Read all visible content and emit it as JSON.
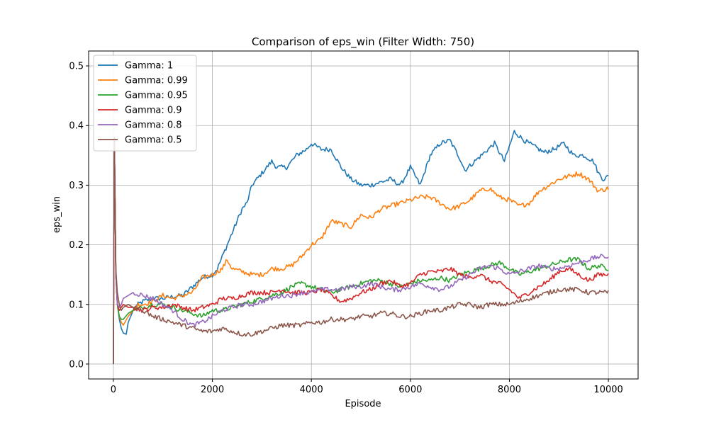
{
  "chart_data": {
    "type": "line",
    "title": "Comparison of eps_win (Filter Width: 750)",
    "xlabel": "Episode",
    "ylabel": "eps_win",
    "xlim": [
      -500,
      10600
    ],
    "ylim": [
      -0.025,
      0.525
    ],
    "xticks": [
      0,
      2000,
      4000,
      6000,
      8000,
      10000
    ],
    "yticks": [
      0.0,
      0.1,
      0.2,
      0.3,
      0.4,
      0.5
    ],
    "xtick_labels": [
      "0",
      "2000",
      "4000",
      "6000",
      "8000",
      "10000"
    ],
    "ytick_labels": [
      "0.0",
      "0.1",
      "0.2",
      "0.3",
      "0.4",
      "0.5"
    ],
    "grid": true,
    "legend": "top-left",
    "series": [
      {
        "name": "Gamma: 1",
        "color": "#1f77b4",
        "x": [
          0,
          20,
          50,
          80,
          120,
          160,
          200,
          260,
          300,
          400,
          500,
          600,
          800,
          1000,
          1200,
          1400,
          1600,
          1800,
          2000,
          2100,
          2300,
          2500,
          2600,
          2700,
          2800,
          3000,
          3200,
          3300,
          3500,
          3700,
          3900,
          4000,
          4200,
          4400,
          4600,
          4800,
          5000,
          5200,
          5400,
          5600,
          5800,
          6000,
          6200,
          6400,
          6600,
          6800,
          7000,
          7100,
          7300,
          7500,
          7700,
          7900,
          8100,
          8300,
          8500,
          8700,
          8900,
          9100,
          9300,
          9500,
          9700,
          9800,
          9900,
          10000
        ],
        "values": [
          0.0,
          0.38,
          0.15,
          0.1,
          0.075,
          0.06,
          0.052,
          0.05,
          0.07,
          0.09,
          0.1,
          0.105,
          0.11,
          0.11,
          0.113,
          0.115,
          0.13,
          0.145,
          0.15,
          0.16,
          0.2,
          0.24,
          0.26,
          0.27,
          0.3,
          0.32,
          0.34,
          0.33,
          0.33,
          0.35,
          0.36,
          0.37,
          0.36,
          0.36,
          0.33,
          0.31,
          0.3,
          0.3,
          0.305,
          0.31,
          0.3,
          0.33,
          0.3,
          0.35,
          0.37,
          0.375,
          0.345,
          0.325,
          0.34,
          0.355,
          0.37,
          0.34,
          0.39,
          0.375,
          0.365,
          0.355,
          0.36,
          0.37,
          0.35,
          0.35,
          0.34,
          0.32,
          0.31,
          0.315
        ]
      },
      {
        "name": "Gamma: 0.99",
        "color": "#ff7f0e",
        "x": [
          0,
          20,
          50,
          80,
          120,
          160,
          200,
          300,
          400,
          500,
          600,
          800,
          1000,
          1200,
          1400,
          1600,
          1800,
          2000,
          2200,
          2300,
          2400,
          2600,
          2800,
          3000,
          3200,
          3400,
          3600,
          3800,
          4000,
          4200,
          4400,
          4600,
          4800,
          5000,
          5200,
          5400,
          5600,
          5800,
          6000,
          6200,
          6400,
          6600,
          6800,
          7000,
          7200,
          7400,
          7600,
          7800,
          8000,
          8200,
          8400,
          8600,
          8800,
          9000,
          9200,
          9400,
          9600,
          9800,
          10000
        ],
        "values": [
          0.0,
          0.38,
          0.15,
          0.1,
          0.08,
          0.07,
          0.065,
          0.08,
          0.09,
          0.1,
          0.1,
          0.105,
          0.115,
          0.11,
          0.115,
          0.12,
          0.145,
          0.15,
          0.16,
          0.175,
          0.16,
          0.155,
          0.15,
          0.15,
          0.16,
          0.16,
          0.165,
          0.18,
          0.2,
          0.21,
          0.24,
          0.235,
          0.23,
          0.25,
          0.245,
          0.26,
          0.265,
          0.27,
          0.275,
          0.28,
          0.28,
          0.27,
          0.26,
          0.265,
          0.275,
          0.29,
          0.295,
          0.28,
          0.275,
          0.265,
          0.27,
          0.29,
          0.3,
          0.31,
          0.315,
          0.32,
          0.31,
          0.29,
          0.295
        ]
      },
      {
        "name": "Gamma: 0.95",
        "color": "#2ca02c",
        "x": [
          0,
          20,
          50,
          80,
          120,
          160,
          200,
          300,
          400,
          600,
          800,
          1000,
          1200,
          1400,
          1600,
          1800,
          2000,
          2200,
          2400,
          2600,
          2800,
          3000,
          3200,
          3400,
          3600,
          3800,
          4000,
          4200,
          4400,
          4600,
          4800,
          5000,
          5200,
          5400,
          5600,
          5800,
          6000,
          6200,
          6400,
          6600,
          6800,
          7000,
          7200,
          7400,
          7600,
          7800,
          8000,
          8200,
          8400,
          8600,
          8800,
          9000,
          9200,
          9400,
          9600,
          9800,
          10000
        ],
        "values": [
          0.0,
          0.38,
          0.15,
          0.1,
          0.08,
          0.075,
          0.075,
          0.085,
          0.09,
          0.095,
          0.1,
          0.1,
          0.095,
          0.09,
          0.085,
          0.08,
          0.09,
          0.09,
          0.095,
          0.1,
          0.105,
          0.11,
          0.115,
          0.12,
          0.13,
          0.135,
          0.13,
          0.125,
          0.12,
          0.125,
          0.13,
          0.135,
          0.14,
          0.14,
          0.135,
          0.13,
          0.135,
          0.14,
          0.14,
          0.145,
          0.14,
          0.15,
          0.155,
          0.16,
          0.165,
          0.17,
          0.16,
          0.15,
          0.155,
          0.16,
          0.165,
          0.17,
          0.175,
          0.175,
          0.16,
          0.165,
          0.16
        ]
      },
      {
        "name": "Gamma: 0.9",
        "color": "#d62728",
        "x": [
          0,
          20,
          50,
          80,
          120,
          160,
          200,
          300,
          400,
          600,
          800,
          1000,
          1200,
          1400,
          1600,
          1800,
          2000,
          2200,
          2400,
          2600,
          2800,
          3000,
          3200,
          3400,
          3600,
          3800,
          4000,
          4200,
          4400,
          4600,
          4800,
          5000,
          5200,
          5400,
          5600,
          5800,
          6000,
          6200,
          6400,
          6600,
          6800,
          7000,
          7200,
          7400,
          7600,
          7800,
          8000,
          8200,
          8400,
          8600,
          8800,
          9000,
          9200,
          9400,
          9600,
          9800,
          10000
        ],
        "values": [
          0.0,
          0.38,
          0.15,
          0.1,
          0.09,
          0.095,
          0.1,
          0.095,
          0.095,
          0.09,
          0.095,
          0.095,
          0.1,
          0.095,
          0.09,
          0.095,
          0.1,
          0.11,
          0.11,
          0.115,
          0.12,
          0.12,
          0.12,
          0.125,
          0.12,
          0.12,
          0.12,
          0.125,
          0.115,
          0.105,
          0.11,
          0.12,
          0.125,
          0.135,
          0.14,
          0.13,
          0.135,
          0.15,
          0.155,
          0.155,
          0.16,
          0.15,
          0.145,
          0.15,
          0.14,
          0.135,
          0.125,
          0.11,
          0.12,
          0.13,
          0.14,
          0.155,
          0.16,
          0.15,
          0.14,
          0.15,
          0.15
        ]
      },
      {
        "name": "Gamma: 0.8",
        "color": "#9467bd",
        "x": [
          0,
          20,
          50,
          80,
          120,
          160,
          200,
          300,
          400,
          600,
          800,
          1000,
          1200,
          1400,
          1600,
          1800,
          2000,
          2200,
          2400,
          2600,
          2800,
          3000,
          3200,
          3400,
          3600,
          3800,
          4000,
          4200,
          4400,
          4600,
          4800,
          5000,
          5200,
          5400,
          5600,
          5800,
          6000,
          6200,
          6400,
          6600,
          6800,
          7000,
          7200,
          7400,
          7600,
          7800,
          8000,
          8200,
          8400,
          8600,
          8800,
          9000,
          9200,
          9400,
          9600,
          9800,
          10000
        ],
        "values": [
          0.0,
          0.38,
          0.15,
          0.1,
          0.095,
          0.1,
          0.11,
          0.115,
          0.12,
          0.115,
          0.11,
          0.1,
          0.09,
          0.075,
          0.065,
          0.07,
          0.08,
          0.09,
          0.095,
          0.1,
          0.1,
          0.105,
          0.11,
          0.115,
          0.115,
          0.12,
          0.12,
          0.125,
          0.125,
          0.125,
          0.13,
          0.13,
          0.135,
          0.13,
          0.125,
          0.125,
          0.13,
          0.135,
          0.13,
          0.125,
          0.13,
          0.14,
          0.15,
          0.16,
          0.165,
          0.16,
          0.15,
          0.155,
          0.16,
          0.165,
          0.16,
          0.16,
          0.165,
          0.17,
          0.175,
          0.18,
          0.18
        ]
      },
      {
        "name": "Gamma: 0.5",
        "color": "#8c564b",
        "x": [
          0,
          20,
          50,
          80,
          120,
          160,
          200,
          300,
          400,
          600,
          800,
          1000,
          1200,
          1400,
          1600,
          1800,
          2000,
          2200,
          2400,
          2600,
          2800,
          3000,
          3200,
          3400,
          3600,
          3800,
          4000,
          4200,
          4400,
          4600,
          4800,
          5000,
          5200,
          5400,
          5600,
          5800,
          6000,
          6200,
          6400,
          6600,
          6800,
          7000,
          7200,
          7400,
          7600,
          7800,
          8000,
          8200,
          8400,
          8600,
          8800,
          9000,
          9200,
          9400,
          9600,
          9800,
          10000
        ],
        "values": [
          0.0,
          0.38,
          0.16,
          0.12,
          0.1,
          0.09,
          0.095,
          0.1,
          0.095,
          0.09,
          0.08,
          0.075,
          0.07,
          0.065,
          0.06,
          0.055,
          0.055,
          0.06,
          0.055,
          0.05,
          0.05,
          0.055,
          0.06,
          0.065,
          0.065,
          0.065,
          0.07,
          0.07,
          0.075,
          0.075,
          0.075,
          0.08,
          0.08,
          0.085,
          0.085,
          0.08,
          0.08,
          0.085,
          0.09,
          0.09,
          0.095,
          0.1,
          0.1,
          0.095,
          0.1,
          0.1,
          0.1,
          0.105,
          0.11,
          0.115,
          0.12,
          0.125,
          0.125,
          0.125,
          0.12,
          0.12,
          0.12
        ]
      }
    ]
  }
}
